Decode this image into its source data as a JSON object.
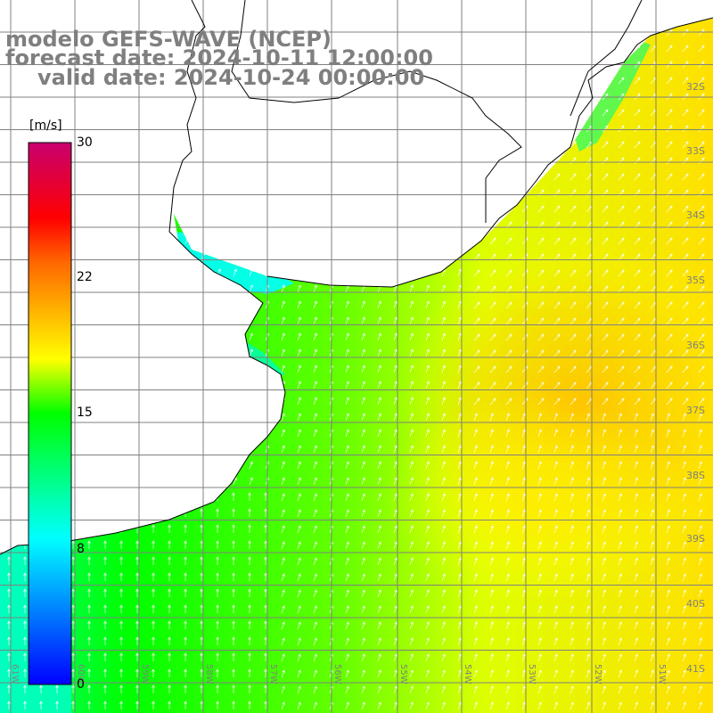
{
  "header": {
    "model": "modelo GEFS-WAVE (NCEP)",
    "forecast": "forecast date: 2024-10-11 12:00:00",
    "valid": "valid date: 2024-10-24 00:00:00"
  },
  "colorbar": {
    "unit": "[m/s]",
    "ticks": [
      "30",
      "22",
      "15",
      "8",
      "0"
    ],
    "range": [
      0,
      30
    ],
    "colors": [
      "#0000ff",
      "#00ffff",
      "#00ff00",
      "#ffff00",
      "#ff0000",
      "#c8006e"
    ]
  },
  "map": {
    "lat_labels": [
      "32S",
      "33S",
      "34S",
      "35S",
      "36S",
      "37S",
      "38S",
      "39S",
      "40S",
      "41S"
    ],
    "lon_labels": [
      "61W",
      "60W",
      "59W",
      "58W",
      "57W",
      "56W",
      "55W",
      "54W",
      "53W",
      "52W",
      "51W"
    ],
    "lat_range": [
      -41.2,
      -30.9
    ],
    "lon_range": [
      -61.1,
      -50.1
    ],
    "land_color": "#ffffff",
    "arrow_color": "#ffffff",
    "grid_color": "#808080",
    "palette": {
      "cyan": "#00ffff",
      "teal": "#00ff9a",
      "green": "#00ff00",
      "lime": "#9aff00",
      "yellowgreen": "#ccff00",
      "yellow": "#ffff00",
      "gold": "#ffd700",
      "orange": "#ffb400"
    }
  }
}
